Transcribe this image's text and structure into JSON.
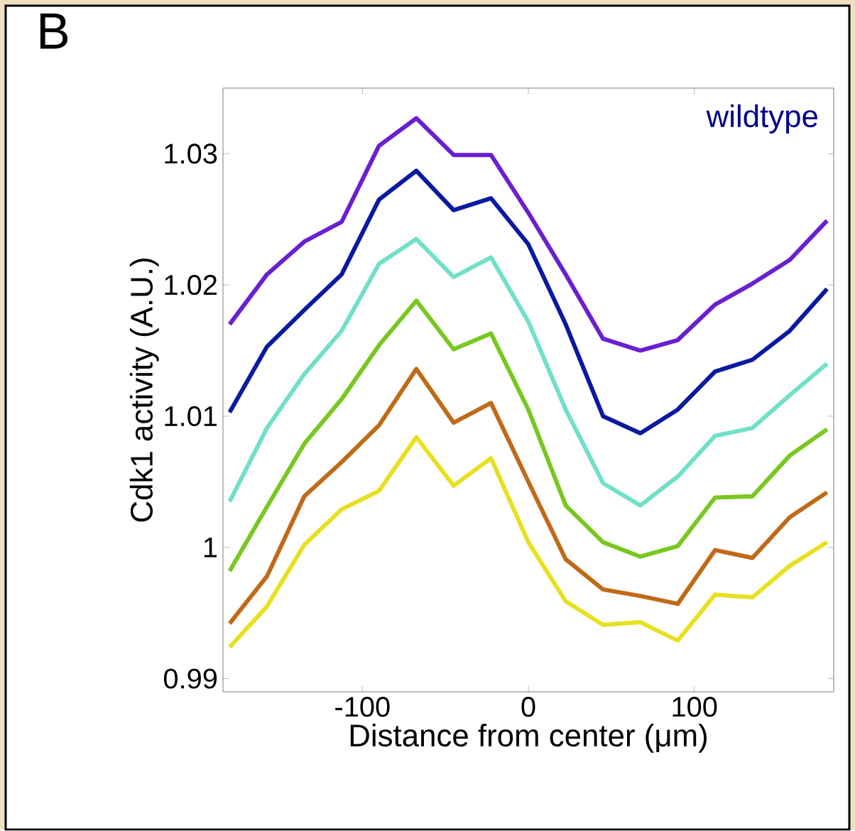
{
  "chart_data": {
    "type": "line",
    "xlabel": "Distance from center (μm)",
    "ylabel": "Cdk1 activity (A.U.)",
    "annotations": [
      "B",
      "wildtype"
    ],
    "x": [
      -180,
      -157.5,
      -135,
      -112.5,
      -90,
      -67.5,
      -45,
      -22.5,
      0,
      22.5,
      45,
      67.5,
      90,
      112.5,
      135,
      157.5,
      180
    ],
    "xlim": [
      -184,
      184
    ],
    "xticks": [
      -100,
      0,
      100
    ],
    "ylim": [
      0.989,
      1.035
    ],
    "yticks": [
      0.99,
      1,
      1.01,
      1.02,
      1.03
    ],
    "marker": "none",
    "line_style": "solid",
    "series": [
      {
        "color": "#6a1fd0",
        "values": [
          1.017,
          1.0208,
          1.0233,
          1.0248,
          1.0306,
          1.0327,
          1.0299,
          1.0299,
          1.0255,
          1.0208,
          1.0159,
          1.015,
          1.0158,
          1.0185,
          1.0201,
          1.0219,
          1.0249
        ]
      },
      {
        "color": "#0a1aa0",
        "values": [
          1.0103,
          1.0153,
          1.0181,
          1.0208,
          1.0265,
          1.0287,
          1.0257,
          1.0266,
          1.0231,
          1.017,
          1.01,
          1.0087,
          1.0105,
          1.0134,
          1.0143,
          1.0165,
          1.0197
        ]
      },
      {
        "color": "#70e0c8",
        "values": [
          1.0035,
          1.0091,
          1.0132,
          1.0165,
          1.0216,
          1.0235,
          1.0206,
          1.0221,
          1.0172,
          1.0105,
          1.0049,
          1.0032,
          1.0054,
          1.0085,
          1.0091,
          1.0116,
          1.014
        ]
      },
      {
        "color": "#78c820",
        "values": [
          0.9982,
          1.0031,
          1.0079,
          1.0113,
          1.0154,
          1.0188,
          1.0151,
          1.0163,
          1.0105,
          1.0032,
          1.0004,
          0.9993,
          1.0001,
          1.0038,
          1.0039,
          1.007,
          1.009
        ]
      },
      {
        "color": "#c06a18",
        "values": [
          0.9942,
          0.9978,
          1.0039,
          1.0065,
          1.0093,
          1.0136,
          1.0095,
          1.011,
          1.005,
          0.9991,
          0.9968,
          0.9963,
          0.9957,
          0.9998,
          0.9992,
          1.0023,
          1.0042
        ]
      },
      {
        "color": "#e8e020",
        "values": [
          0.9924,
          0.9955,
          1.0002,
          1.0029,
          1.0043,
          1.0084,
          1.0047,
          1.0068,
          1.0004,
          0.9959,
          0.9941,
          0.9943,
          0.9929,
          0.9964,
          0.9962,
          0.9986,
          1.0004
        ]
      }
    ]
  }
}
